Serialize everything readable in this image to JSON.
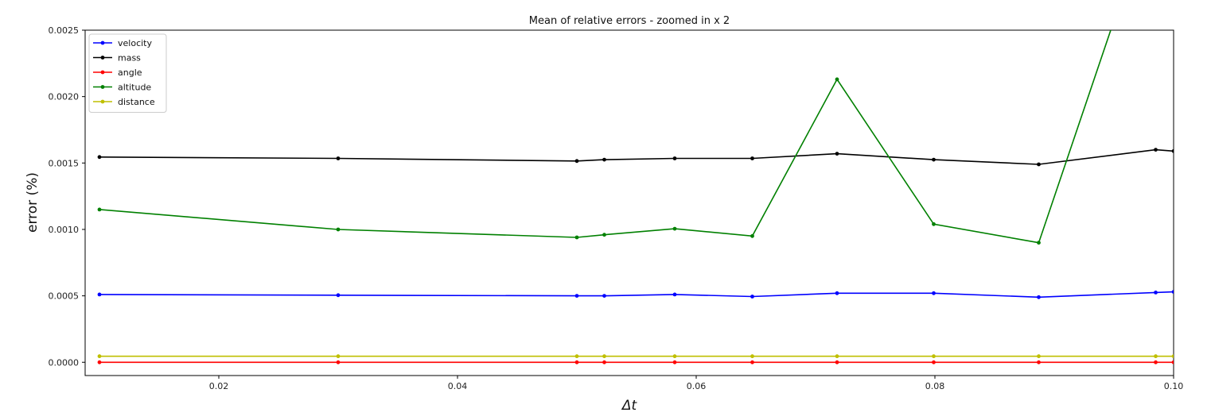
{
  "chart_data": {
    "type": "line",
    "title": "Mean of relative errors - zoomed in x 2",
    "xlabel": "Δt",
    "ylabel": "error (%)",
    "xlim": [
      0.0088,
      0.1
    ],
    "ylim": [
      -0.0001,
      0.0025
    ],
    "xticks": [
      0.02,
      0.04,
      0.06,
      0.08,
      0.1
    ],
    "xtick_labels": [
      "0.02",
      "0.04",
      "0.06",
      "0.08",
      "0.10"
    ],
    "yticks": [
      0.0,
      0.0005,
      0.001,
      0.0015,
      0.002,
      0.0025
    ],
    "ytick_labels": [
      "0.0000",
      "0.0005",
      "0.0010",
      "0.0015",
      "0.0020",
      "0.0025"
    ],
    "legend_position": "top-left",
    "grid": false,
    "x": [
      0.01,
      0.03,
      0.05,
      0.0523,
      0.0582,
      0.0647,
      0.0718,
      0.0799,
      0.0887,
      0.0985,
      0.1
    ],
    "series": [
      {
        "name": "velocity",
        "color": "#0000ff",
        "values": [
          0.00051,
          0.000505,
          0.0005,
          0.0005,
          0.00051,
          0.000495,
          0.00052,
          0.00052,
          0.00049,
          0.000525,
          0.00053
        ]
      },
      {
        "name": "mass",
        "color": "#000000",
        "values": [
          0.001545,
          0.001535,
          0.001515,
          0.001525,
          0.001535,
          0.001535,
          0.00157,
          0.001525,
          0.00149,
          0.0016,
          0.00159
        ]
      },
      {
        "name": "angle",
        "color": "#ff0000",
        "values": [
          0.0,
          0.0,
          0.0,
          0.0,
          0.0,
          0.0,
          0.0,
          0.0,
          0.0,
          0.0,
          0.0
        ]
      },
      {
        "name": "altitude",
        "color": "#008000",
        "values": [
          0.00115,
          0.001,
          0.00094,
          0.00096,
          0.001005,
          0.00095,
          0.00213,
          0.00104,
          0.0009,
          0.0035,
          null
        ]
      },
      {
        "name": "distance",
        "color": "#bfbf00",
        "values": [
          4.5e-05,
          4.5e-05,
          4.5e-05,
          4.5e-05,
          4.5e-05,
          4.5e-05,
          4.5e-05,
          4.5e-05,
          4.5e-05,
          4.5e-05,
          4.5e-05
        ]
      }
    ]
  }
}
